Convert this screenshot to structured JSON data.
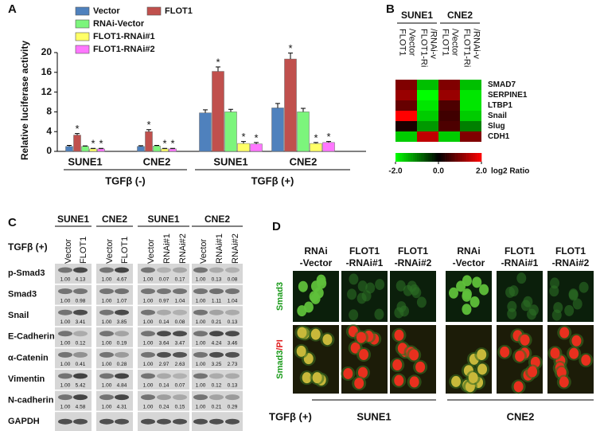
{
  "panel_labels": [
    "A",
    "B",
    "C",
    "D"
  ],
  "chart_data": [
    {
      "type": "bar",
      "y_label": "Relative luciferase activity",
      "categories": [
        "SUNE1",
        "CNE2",
        "SUNE1",
        "CNE2"
      ],
      "group_labels": [
        "TGFβ (-)",
        "TGFβ (+)"
      ],
      "series": [
        {
          "name": "Vector",
          "color": "#4f81bd",
          "values": [
            1.0,
            1.0,
            7.8,
            8.8
          ],
          "errors": [
            0.2,
            0.15,
            0.6,
            0.9
          ]
        },
        {
          "name": "FLOT1",
          "color": "#c0504d",
          "values": [
            3.3,
            4.0,
            16.2,
            18.7
          ],
          "errors": [
            0.3,
            0.4,
            0.9,
            1.2
          ],
          "marks": [
            "*",
            "*",
            "*",
            "*"
          ]
        },
        {
          "name": "RNAi-Vector",
          "color": "#7cf57c",
          "values": [
            1.0,
            1.1,
            8.0,
            8.0
          ],
          "errors": [
            0.1,
            0.1,
            0.5,
            0.7
          ]
        },
        {
          "name": "FLOT1-RNAi#1",
          "color": "#ffff66",
          "values": [
            0.5,
            0.5,
            1.6,
            1.6
          ],
          "errors": [
            0.1,
            0.1,
            0.4,
            0.2
          ],
          "marks": [
            "*",
            "*",
            "*",
            "*"
          ]
        },
        {
          "name": "FLOT1-RNAi#2",
          "color": "#ff77ff",
          "values": [
            0.5,
            0.5,
            1.5,
            1.8
          ],
          "errors": [
            0.1,
            0.1,
            0.3,
            0.2
          ],
          "marks": [
            "*",
            "*",
            "*",
            "*"
          ]
        }
      ],
      "ylim": [
        0,
        20
      ],
      "yticks": [
        0,
        4,
        8,
        12,
        16,
        20
      ]
    },
    {
      "type": "heatmap",
      "column_groups": [
        "SUNE1",
        "CNE2"
      ],
      "columns": [
        [
          "FLOT1",
          "/Vector"
        ],
        [
          "FLOT1-Ri",
          "/RNAi-v"
        ],
        [
          "FLOT1",
          "/Vector"
        ],
        [
          "FLOT1-Ri",
          "/RNAi-v"
        ]
      ],
      "rows": [
        "SMAD7",
        "SERPINE1",
        "LTBP1",
        "Snail",
        "Slug",
        "CDH1"
      ],
      "values": [
        [
          1.0,
          -1.5,
          1.0,
          -1.5
        ],
        [
          1.2,
          -2.0,
          1.2,
          -1.8
        ],
        [
          0.8,
          -1.8,
          0.6,
          -1.8
        ],
        [
          2.0,
          -1.6,
          0.5,
          -1.6
        ],
        [
          0.2,
          -1.2,
          0.6,
          -1.0
        ],
        [
          -1.6,
          1.5,
          -1.6,
          1.0
        ]
      ],
      "colors": [
        "#00ff00",
        "#000000",
        "#ff0000"
      ],
      "colorbar": {
        "label": "log2 Ratio",
        "lim": [
          -2,
          2
        ],
        "ticks": [
          {
            "value": -2,
            "label": "-2.0"
          },
          {
            "value": 0,
            "label": "0.0"
          },
          {
            "value": 2,
            "label": "2.0"
          }
        ]
      }
    }
  ],
  "western_blot": {
    "condition": "TGFβ (+)",
    "blocks": [
      {
        "cell_line": "SUNE1",
        "lanes": [
          "Vector",
          "FLOT1"
        ]
      },
      {
        "cell_line": "CNE2",
        "lanes": [
          "Vector",
          "FLOT1"
        ]
      },
      {
        "cell_line": "SUNE1",
        "lanes": [
          "Vector",
          "RNAi#1",
          "RNAi#2"
        ]
      },
      {
        "cell_line": "CNE2",
        "lanes": [
          "Vector",
          "RNAi#1",
          "RNAi#2"
        ]
      }
    ],
    "rows": [
      {
        "protein": "p-Smad3",
        "values": [
          [
            "1.00",
            "4.13"
          ],
          [
            "1.00",
            "4.67"
          ],
          [
            "1.00",
            "0.07",
            "0.17"
          ],
          [
            "1.00",
            "0.13",
            "0.08"
          ]
        ]
      },
      {
        "protein": "Smad3",
        "values": [
          [
            "1.00",
            "0.98"
          ],
          [
            "1.00",
            "1.07"
          ],
          [
            "1.00",
            "0.97",
            "1.04"
          ],
          [
            "1.00",
            "1.11",
            "1.04"
          ]
        ]
      },
      {
        "protein": "Snail",
        "values": [
          [
            "1.00",
            "3.41"
          ],
          [
            "1.00",
            "3.85"
          ],
          [
            "1.00",
            "0.14",
            "0.08"
          ],
          [
            "1.00",
            "0.21",
            "0.13"
          ]
        ]
      },
      {
        "protein": "E-Cadherin",
        "values": [
          [
            "1.00",
            "0.12"
          ],
          [
            "1.00",
            "0.19"
          ],
          [
            "1.00",
            "3.64",
            "3.47"
          ],
          [
            "1.00",
            "4.24",
            "3.46"
          ]
        ]
      },
      {
        "protein": "α-Catenin",
        "values": [
          [
            "1.00",
            "0.41"
          ],
          [
            "1.00",
            "0.28"
          ],
          [
            "1.00",
            "2.97",
            "2.63"
          ],
          [
            "1.00",
            "3.25",
            "2.73"
          ]
        ]
      },
      {
        "protein": "Vimentin",
        "values": [
          [
            "1.00",
            "5.42"
          ],
          [
            "1.00",
            "4.84"
          ],
          [
            "1.00",
            "0.14",
            "0.07"
          ],
          [
            "1.00",
            "0.12",
            "0.13"
          ]
        ]
      },
      {
        "protein": "N-cadherin",
        "values": [
          [
            "1.00",
            "4.58"
          ],
          [
            "1.00",
            "4.31"
          ],
          [
            "1.00",
            "0.24",
            "0.15"
          ],
          [
            "1.00",
            "0.21",
            "0.29"
          ]
        ]
      },
      {
        "protein": "GAPDH"
      }
    ]
  },
  "immunofluorescence": {
    "condition": "TGFβ (+)",
    "cell_lines": [
      "SUNE1",
      "CNE2"
    ],
    "columns": [
      [
        "RNAi",
        "-Vector"
      ],
      [
        "FLOT1",
        "-RNAi#1"
      ],
      [
        "FLOT1",
        "-RNAi#2"
      ],
      [
        "RNAi",
        "-Vector"
      ],
      [
        "FLOT1",
        "-RNAi#1"
      ],
      [
        "FLOT1",
        "-RNAi#2"
      ]
    ],
    "rows": [
      [
        "Smad3"
      ],
      [
        "Smad3",
        "/PI"
      ]
    ]
  }
}
